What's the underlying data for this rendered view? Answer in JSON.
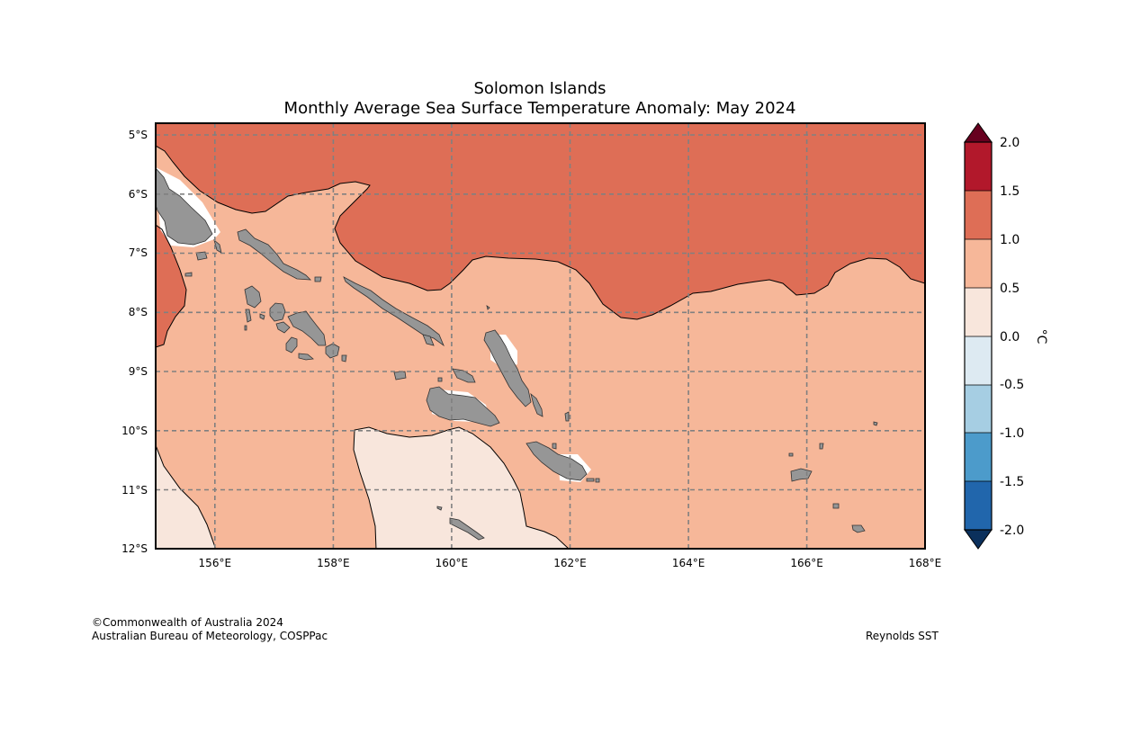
{
  "title": {
    "line1": "Solomon Islands",
    "line2": "Monthly Average Sea Surface Temperature Anomaly: May 2024"
  },
  "axes": {
    "lat_labels": [
      "5°S",
      "6°S",
      "7°S",
      "8°S",
      "9°S",
      "10°S",
      "11°S",
      "12°S"
    ],
    "lon_labels": [
      "156°E",
      "158°E",
      "160°E",
      "162°E",
      "164°E",
      "166°E",
      "168°E"
    ]
  },
  "colorbar": {
    "unit": "°C",
    "ticks": [
      "2.0",
      "1.5",
      "1.0",
      "0.5",
      "0.0",
      "-0.5",
      "-1.0",
      "-1.5",
      "-2.0"
    ],
    "colors": {
      "above_max": "#67001f",
      "1.5_to_2.0": "#b2182b",
      "1.0_to_1.5": "#de6e56",
      "0.5_to_1.0": "#f6b799",
      "0.0_to_0.5": "#f8e6dc",
      "-0.5_to_0.0": "#ddeaf2",
      "-1.0_to_-0.5": "#a6cee3",
      "-1.5_to_-1.0": "#4c9bcb",
      "-2.0_to_-1.5": "#2166ac",
      "below_min": "#0b305c"
    }
  },
  "map_colors": {
    "land": "#969696",
    "grid": "#808080"
  },
  "footer": {
    "copyright": "©Commonwealth of Australia 2024",
    "agency": "Australian Bureau of Meteorology, COSPPac",
    "source": "Reynolds SST"
  }
}
